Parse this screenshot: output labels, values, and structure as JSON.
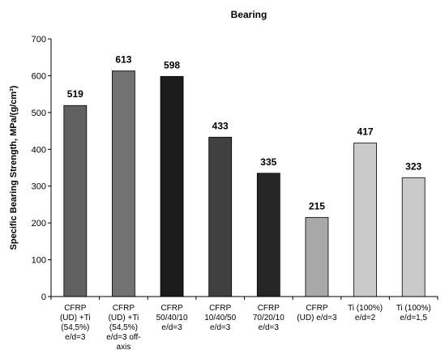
{
  "chart_data": {
    "type": "bar",
    "title": "Bearing",
    "ylabel": "Specific Bearing Strength, MPa/(g/cm³)",
    "ylim": [
      0,
      700
    ],
    "yticks": [
      0,
      100,
      200,
      300,
      400,
      500,
      600,
      700
    ],
    "grid": false,
    "legend": "none",
    "categories": [
      [
        "CFRP",
        "(UD)     +Ti",
        "(54,5%)",
        "e/d=3"
      ],
      [
        "CFRP",
        "(UD)     +Ti",
        "(54,5%)",
        "e/d=3 off-",
        "axis"
      ],
      [
        "CFRP",
        "50/40/10",
        "e/d=3"
      ],
      [
        "CFRP",
        "10/40/50",
        "e/d=3"
      ],
      [
        "CFRP",
        "70/20/10",
        "e/d=3"
      ],
      [
        "CFRP",
        "(UD) e/d=3"
      ],
      [
        "Ti (100%)",
        "e/d=2"
      ],
      [
        "Ti (100%)",
        "e/d=1,5"
      ]
    ],
    "values": [
      519,
      613,
      598,
      433,
      335,
      215,
      417,
      323
    ],
    "colors": [
      "#606060",
      "#727272",
      "#1c1c1c",
      "#404040",
      "#262626",
      "#a8a8a8",
      "#cacaca",
      "#cacaca"
    ]
  }
}
